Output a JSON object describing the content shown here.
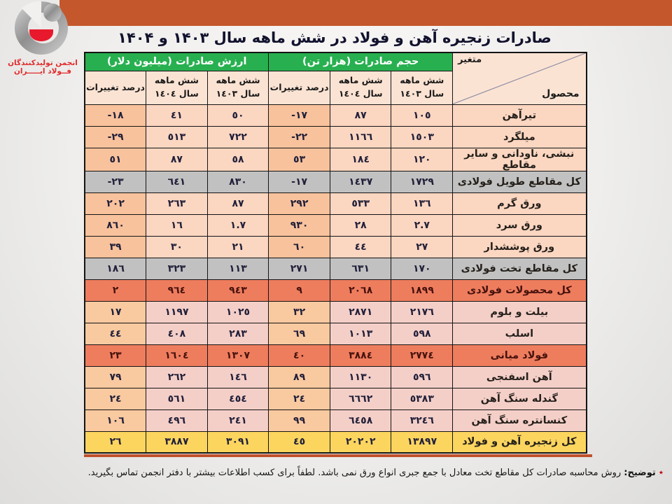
{
  "logo": {
    "line1": "انجمن تولیدکنندگان",
    "line2": "فــولاد ایـــــران"
  },
  "title": "صادرات زنجیره آهن و فولاد در شش ماهه سال ۱۴۰۳ و ۱۴۰۴",
  "table": {
    "corner": {
      "top_label": "متغیر",
      "bottom_label": "محصول"
    },
    "groups": [
      {
        "label": "حجم صادرات (هزار تن)"
      },
      {
        "label": "ارزش صادرات (میلیون دلار)"
      }
    ],
    "subheaders": [
      "شش ماهه\nسال ١٤٠٣",
      "شش ماهه\nسال ١٤٠٤",
      "درصد تغییرات",
      "شش ماهه\nسال ١٤٠٣",
      "شش ماهه\nسال ١٤٠٤",
      "درصد تغییرات"
    ],
    "rows": [
      {
        "product": "تیرآهن",
        "style": "peach",
        "cells": [
          "١٠٥",
          "٨٧",
          "-١٧",
          "٥٠",
          "٤١",
          "-١٨"
        ]
      },
      {
        "product": "میلگرد",
        "style": "peach",
        "cells": [
          "١٥٠٣",
          "١١٦٦",
          "-٢٢",
          "٧٢٢",
          "٥١٣",
          "-٢٩"
        ]
      },
      {
        "product": "نبشی، ناودانی و سایر مقاطع",
        "style": "peach",
        "cells": [
          "١٢٠",
          "١٨٤",
          "٥٣",
          "٥٨",
          "٨٧",
          "٥١"
        ]
      },
      {
        "product": "کل مقاطع طویل فولادی",
        "style": "gray",
        "cells": [
          "١٧٢٩",
          "١٤٣٧",
          "-١٧",
          "٨٣٠",
          "٦٤١",
          "-٢٣"
        ]
      },
      {
        "product": "ورق گرم",
        "style": "peach",
        "cells": [
          "١٣٦",
          "٥٣٣",
          "٢٩٢",
          "٨٧",
          "٢٦٣",
          "٢٠٢"
        ]
      },
      {
        "product": "ورق سرد",
        "style": "peach",
        "cells": [
          "٢.٧",
          "٢٨",
          "٩٣٠",
          "١.٧",
          "١٦",
          "٨٦٠"
        ]
      },
      {
        "product": "ورق پوششدار",
        "style": "peach",
        "cells": [
          "٢٧",
          "٤٤",
          "٦٠",
          "٢١",
          "٣٠",
          "٣٩"
        ]
      },
      {
        "product": "کل مقاطع تخت فولادی",
        "style": "gray",
        "cells": [
          "١٧٠",
          "٦٣١",
          "٢٧١",
          "١١٣",
          "٣٢٣",
          "١٨٦"
        ]
      },
      {
        "product": "کل محصولات فولادی",
        "style": "coral",
        "cells": [
          "١٨٩٩",
          "٢٠٦٨",
          "٩",
          "٩٤٣",
          "٩٦٤",
          "٢"
        ]
      },
      {
        "product": "بیلت و بلوم",
        "style": "pink",
        "cells": [
          "٢١٧٦",
          "٢٨٧١",
          "٣٢",
          "١٠٢٥",
          "١١٩٧",
          "١٧"
        ]
      },
      {
        "product": "اسلب",
        "style": "pink",
        "cells": [
          "٥٩٨",
          "١٠١٣",
          "٦٩",
          "٢٨٣",
          "٤٠٨",
          "٤٤"
        ]
      },
      {
        "product": "فولاد میانی",
        "style": "coral",
        "cells": [
          "٢٧٧٤",
          "٣٨٨٤",
          "٤٠",
          "١٣٠٧",
          "١٦٠٤",
          "٢٣"
        ]
      },
      {
        "product": "آهن اسفنجی",
        "style": "pink",
        "cells": [
          "٥٩٦",
          "١١٣٠",
          "٨٩",
          "١٤٦",
          "٢٦٢",
          "٧٩"
        ]
      },
      {
        "product": "گندله سنگ آهن",
        "style": "pink",
        "cells": [
          "٥٣٨٣",
          "٦٦٦٢",
          "٢٤",
          "٤٥٤",
          "٥٦١",
          "٢٤"
        ]
      },
      {
        "product": "کنسانتره سنگ آهن",
        "style": "pink",
        "cells": [
          "٣٢٤٦",
          "٦٤٥٨",
          "٩٩",
          "٢٤١",
          "٤٩٦",
          "١٠٦"
        ]
      },
      {
        "product": "کل زنجیره آهن و فولاد",
        "style": "yellow",
        "cells": [
          "١٣٨٩٧",
          "٢٠٢٠٢",
          "٤٥",
          "٣٠٩١",
          "٣٨٨٧",
          "٢٦"
        ]
      }
    ]
  },
  "footnote": {
    "marker": "٭",
    "label": "توضیح:",
    "text": "روش محاسبه صادرات کل مقاطع تخت معادل با جمع جبری انواع ورق نمی باشد. لطفاً برای کسب اطلاعات بیشتر با دفتر انجمن تماس بگیرید."
  },
  "colors": {
    "top_band": "#c4572b",
    "header_green": "#28b050",
    "subheader_peach": "#fbe3d3",
    "row_peach": "#fbd6c1",
    "row_peach_pct": "#f8c29c",
    "row_pink": "#f4cfc8",
    "row_pink_pct": "#f9c9a0",
    "row_gray": "#c1c1c1",
    "row_coral": "#ee7d5e",
    "row_yellow": "#fcd55f",
    "divider_rule": "#c0512b",
    "logo_red": "#e02b2b",
    "footnote_star_red": "#c00000"
  }
}
